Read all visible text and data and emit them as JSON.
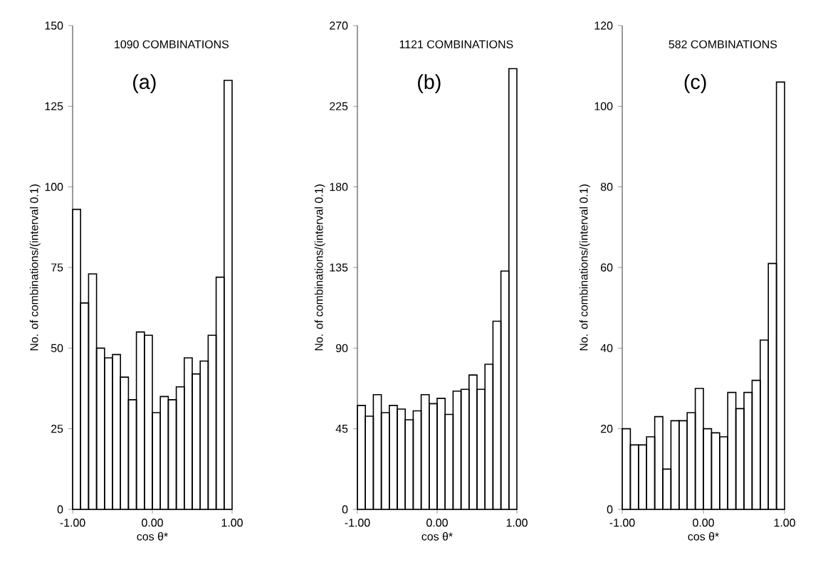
{
  "chart_data": [
    {
      "type": "histogram",
      "title": "1090 COMBINATIONS",
      "annotations": [
        "(a)"
      ],
      "xlabel": "cos θ*",
      "ylabel": "No. of combinations/(interval 0.1)",
      "color": "#000000",
      "bins": [
        -1,
        -0.9,
        -0.8,
        -0.7,
        -0.6,
        -0.5,
        -0.4,
        -0.3,
        -0.2,
        -0.1,
        0,
        0.1,
        0.2,
        0.3,
        0.4,
        0.5,
        0.6,
        0.7,
        0.8,
        0.9,
        1
      ],
      "values": [
        93,
        64,
        73,
        50,
        47,
        48,
        41,
        34,
        55,
        54,
        30,
        35,
        34,
        38,
        47,
        42,
        46,
        54,
        72,
        133
      ],
      "xlim": [
        -1,
        1
      ],
      "ylim": [
        0,
        150
      ],
      "xticks": [
        {
          "value": -1,
          "label": "-1.00"
        },
        {
          "value": 0,
          "label": "0.00"
        },
        {
          "value": 1,
          "label": "1.00"
        }
      ],
      "yticks": [
        0,
        25,
        50,
        75,
        100,
        125,
        150
      ]
    },
    {
      "type": "histogram",
      "title": "1121 COMBINATIONS",
      "annotations": [
        "(b)"
      ],
      "xlabel": "cos θ*",
      "ylabel": "No. of combinations/(interval 0.1)",
      "color": "#000000",
      "bins": [
        -1,
        -0.9,
        -0.8,
        -0.7,
        -0.6,
        -0.5,
        -0.4,
        -0.3,
        -0.2,
        -0.1,
        0,
        0.1,
        0.2,
        0.3,
        0.4,
        0.5,
        0.6,
        0.7,
        0.8,
        0.9,
        1
      ],
      "values": [
        58,
        52,
        64,
        54,
        58,
        56,
        50,
        55,
        64,
        59,
        62,
        53,
        66,
        67,
        75,
        67,
        81,
        105,
        133,
        246
      ],
      "xlim": [
        -1,
        1
      ],
      "ylim": [
        0,
        270
      ],
      "xticks": [
        {
          "value": -1,
          "label": "-1.00"
        },
        {
          "value": 0,
          "label": "0.00"
        },
        {
          "value": 1,
          "label": "1.00"
        }
      ],
      "yticks": [
        0,
        45,
        90,
        135,
        180,
        225,
        270
      ]
    },
    {
      "type": "histogram",
      "title": "582 COMBINATIONS",
      "annotations": [
        "(c)"
      ],
      "xlabel": "cos θ*",
      "ylabel": "No. of combinations/(interval 0.1)",
      "color": "#000000",
      "bins": [
        -1,
        -0.9,
        -0.8,
        -0.7,
        -0.6,
        -0.5,
        -0.4,
        -0.3,
        -0.2,
        -0.1,
        0,
        0.1,
        0.2,
        0.3,
        0.4,
        0.5,
        0.6,
        0.7,
        0.8,
        0.9,
        1
      ],
      "values": [
        20,
        16,
        16,
        18,
        23,
        10,
        22,
        22,
        24,
        30,
        20,
        19,
        18,
        29,
        25,
        29,
        32,
        42,
        61,
        106
      ],
      "xlim": [
        -1,
        1
      ],
      "ylim": [
        0,
        120
      ],
      "xticks": [
        {
          "value": -1,
          "label": "-1.00"
        },
        {
          "value": 0,
          "label": "0.00"
        },
        {
          "value": 1,
          "label": "1.00"
        }
      ],
      "yticks": [
        0,
        20,
        40,
        60,
        80,
        100,
        120
      ]
    }
  ]
}
